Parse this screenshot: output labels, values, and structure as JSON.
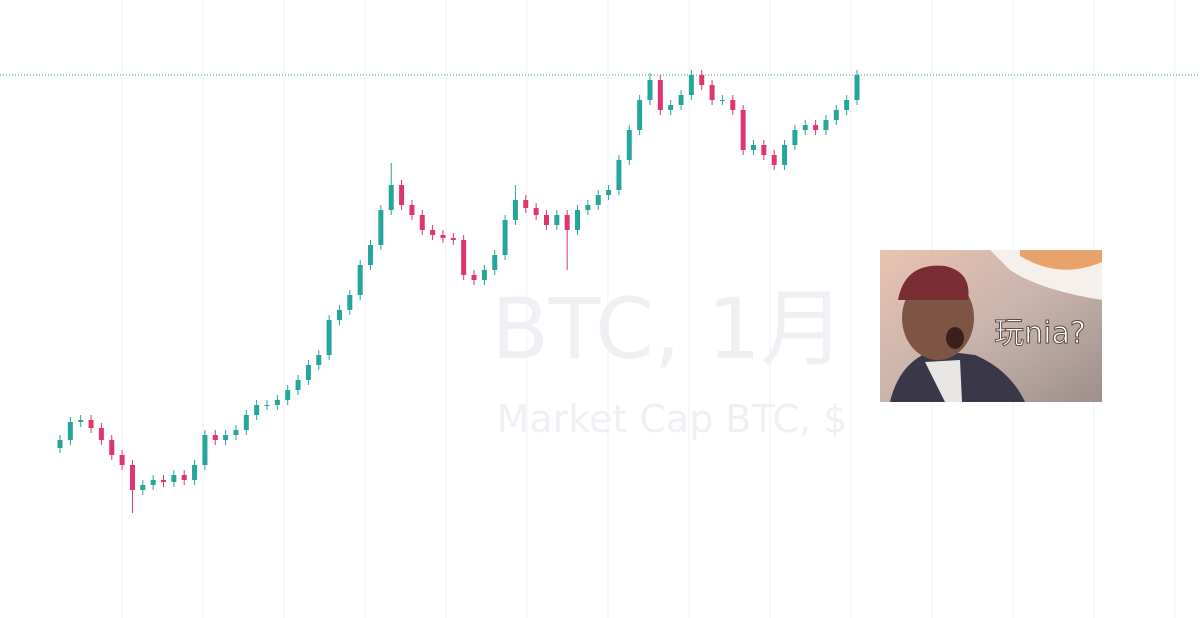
{
  "chart_data": {
    "type": "candlestick",
    "title": "BTC, 1月",
    "subtitle": "Market Cap BTC, $",
    "ylim": [
      0,
      618
    ],
    "up_color": "#26a69a",
    "down_color": "#e0356b",
    "open": [
      170,
      178,
      196,
      198,
      190,
      178,
      163,
      153,
      128,
      133,
      138,
      136,
      143,
      138,
      153,
      183,
      178,
      183,
      188,
      203,
      213,
      213,
      218,
      228,
      238,
      253,
      263,
      298,
      308,
      323,
      353,
      373,
      408,
      433,
      413,
      403,
      388,
      383,
      380,
      378,
      343,
      338,
      348,
      363,
      398,
      418,
      410,
      403,
      393,
      403,
      388,
      408,
      413,
      423,
      428,
      458,
      488,
      518,
      538,
      508,
      513,
      523,
      543,
      533,
      518,
      518,
      508,
      468,
      473,
      463,
      453,
      473,
      488,
      493,
      488,
      498,
      508,
      518
    ],
    "high": [
      183,
      201,
      203,
      203,
      195,
      183,
      168,
      158,
      138,
      143,
      143,
      148,
      148,
      158,
      188,
      188,
      188,
      193,
      208,
      218,
      218,
      223,
      233,
      243,
      258,
      268,
      303,
      313,
      328,
      358,
      378,
      413,
      455,
      438,
      418,
      408,
      393,
      388,
      385,
      383,
      348,
      353,
      368,
      403,
      433,
      423,
      415,
      408,
      408,
      408,
      413,
      418,
      428,
      433,
      463,
      493,
      523,
      545,
      543,
      518,
      528,
      548,
      548,
      538,
      523,
      523,
      513,
      478,
      478,
      468,
      478,
      493,
      498,
      498,
      503,
      513,
      523,
      548
    ],
    "low": [
      165,
      173,
      191,
      185,
      173,
      158,
      148,
      105,
      123,
      128,
      131,
      131,
      133,
      133,
      148,
      173,
      173,
      178,
      183,
      198,
      208,
      208,
      213,
      223,
      233,
      248,
      258,
      293,
      303,
      318,
      348,
      368,
      403,
      408,
      398,
      383,
      378,
      375,
      373,
      338,
      333,
      333,
      343,
      358,
      393,
      405,
      398,
      388,
      388,
      348,
      383,
      403,
      408,
      418,
      423,
      453,
      483,
      513,
      503,
      503,
      508,
      518,
      528,
      513,
      513,
      503,
      463,
      463,
      458,
      448,
      448,
      468,
      483,
      483,
      483,
      493,
      503,
      513
    ],
    "close": [
      178,
      196,
      198,
      190,
      178,
      163,
      153,
      128,
      133,
      138,
      136,
      143,
      138,
      153,
      183,
      178,
      183,
      188,
      203,
      213,
      213,
      218,
      228,
      238,
      253,
      263,
      298,
      308,
      323,
      353,
      373,
      408,
      433,
      413,
      403,
      388,
      383,
      380,
      378,
      343,
      338,
      348,
      363,
      398,
      418,
      410,
      403,
      393,
      403,
      388,
      408,
      413,
      423,
      428,
      458,
      488,
      518,
      538,
      508,
      513,
      523,
      543,
      533,
      518,
      518,
      508,
      468,
      473,
      463,
      453,
      473,
      488,
      493,
      488,
      498,
      508,
      518,
      543
    ]
  },
  "image_caption": "玩nia?"
}
